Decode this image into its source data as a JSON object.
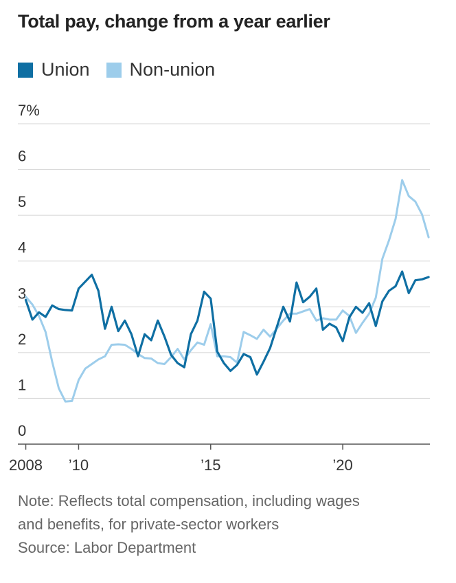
{
  "chart_data": {
    "type": "line",
    "title": "Total pay, change from a year earlier",
    "ylim": [
      0,
      7
    ],
    "y_ticks": [
      "0",
      "1",
      "2",
      "3",
      "4",
      "5",
      "6",
      "7%"
    ],
    "x_ticks": [
      {
        "label": "2008",
        "x": 2008.0
      },
      {
        "label": "’10",
        "x": 2010.0
      },
      {
        "label": "’15",
        "x": 2015.0
      },
      {
        "label": "’20",
        "x": 2020.0
      }
    ],
    "xlim": [
      2007.7,
      2023.3
    ],
    "grid": true,
    "legend_position": "top-left",
    "series": [
      {
        "name": "Union",
        "color": "#0f6fa3",
        "points": [
          [
            2008.0,
            3.15
          ],
          [
            2008.25,
            2.72
          ],
          [
            2008.5,
            2.88
          ],
          [
            2008.75,
            2.78
          ],
          [
            2009.0,
            3.03
          ],
          [
            2009.25,
            2.95
          ],
          [
            2009.5,
            2.93
          ],
          [
            2009.75,
            2.92
          ],
          [
            2010.0,
            3.4
          ],
          [
            2010.25,
            3.55
          ],
          [
            2010.5,
            3.7
          ],
          [
            2010.75,
            3.35
          ],
          [
            2011.0,
            2.52
          ],
          [
            2011.25,
            3.0
          ],
          [
            2011.5,
            2.47
          ],
          [
            2011.75,
            2.7
          ],
          [
            2012.0,
            2.4
          ],
          [
            2012.25,
            1.92
          ],
          [
            2012.5,
            2.4
          ],
          [
            2012.75,
            2.27
          ],
          [
            2013.0,
            2.7
          ],
          [
            2013.25,
            2.35
          ],
          [
            2013.5,
            1.95
          ],
          [
            2013.75,
            1.77
          ],
          [
            2014.0,
            1.68
          ],
          [
            2014.25,
            2.4
          ],
          [
            2014.5,
            2.7
          ],
          [
            2014.75,
            3.33
          ],
          [
            2015.0,
            3.18
          ],
          [
            2015.25,
            2.02
          ],
          [
            2015.5,
            1.77
          ],
          [
            2015.75,
            1.6
          ],
          [
            2016.0,
            1.73
          ],
          [
            2016.25,
            1.97
          ],
          [
            2016.5,
            1.9
          ],
          [
            2016.75,
            1.52
          ],
          [
            2017.0,
            1.8
          ],
          [
            2017.25,
            2.1
          ],
          [
            2017.5,
            2.55
          ],
          [
            2017.75,
            3.0
          ],
          [
            2018.0,
            2.68
          ],
          [
            2018.25,
            3.53
          ],
          [
            2018.5,
            3.1
          ],
          [
            2018.75,
            3.22
          ],
          [
            2019.0,
            3.4
          ],
          [
            2019.25,
            2.5
          ],
          [
            2019.5,
            2.63
          ],
          [
            2019.75,
            2.55
          ],
          [
            2020.0,
            2.25
          ],
          [
            2020.25,
            2.77
          ],
          [
            2020.5,
            3.0
          ],
          [
            2020.75,
            2.87
          ],
          [
            2021.0,
            3.08
          ],
          [
            2021.25,
            2.58
          ],
          [
            2021.5,
            3.12
          ],
          [
            2021.75,
            3.35
          ],
          [
            2022.0,
            3.45
          ],
          [
            2022.25,
            3.77
          ],
          [
            2022.5,
            3.3
          ],
          [
            2022.75,
            3.58
          ],
          [
            2023.0,
            3.6
          ],
          [
            2023.25,
            3.65
          ]
        ]
      },
      {
        "name": "Non-union",
        "color": "#9dcdeb",
        "points": [
          [
            2008.0,
            3.22
          ],
          [
            2008.25,
            3.05
          ],
          [
            2008.5,
            2.8
          ],
          [
            2008.75,
            2.45
          ],
          [
            2009.0,
            1.8
          ],
          [
            2009.25,
            1.22
          ],
          [
            2009.5,
            0.93
          ],
          [
            2009.75,
            0.94
          ],
          [
            2010.0,
            1.4
          ],
          [
            2010.25,
            1.65
          ],
          [
            2010.5,
            1.75
          ],
          [
            2010.75,
            1.85
          ],
          [
            2011.0,
            1.92
          ],
          [
            2011.25,
            2.17
          ],
          [
            2011.5,
            2.18
          ],
          [
            2011.75,
            2.17
          ],
          [
            2012.0,
            2.08
          ],
          [
            2012.25,
            1.97
          ],
          [
            2012.5,
            1.88
          ],
          [
            2012.75,
            1.87
          ],
          [
            2013.0,
            1.77
          ],
          [
            2013.25,
            1.75
          ],
          [
            2013.5,
            1.9
          ],
          [
            2013.75,
            2.08
          ],
          [
            2014.0,
            1.85
          ],
          [
            2014.25,
            2.05
          ],
          [
            2014.5,
            2.22
          ],
          [
            2014.75,
            2.17
          ],
          [
            2015.0,
            2.62
          ],
          [
            2015.25,
            1.92
          ],
          [
            2015.5,
            1.92
          ],
          [
            2015.75,
            1.9
          ],
          [
            2016.0,
            1.78
          ],
          [
            2016.25,
            2.45
          ],
          [
            2016.5,
            2.38
          ],
          [
            2016.75,
            2.3
          ],
          [
            2017.0,
            2.5
          ],
          [
            2017.25,
            2.35
          ],
          [
            2017.5,
            2.52
          ],
          [
            2017.75,
            2.7
          ],
          [
            2018.0,
            2.85
          ],
          [
            2018.25,
            2.85
          ],
          [
            2018.5,
            2.9
          ],
          [
            2018.75,
            2.95
          ],
          [
            2019.0,
            2.7
          ],
          [
            2019.25,
            2.75
          ],
          [
            2019.5,
            2.72
          ],
          [
            2019.75,
            2.72
          ],
          [
            2020.0,
            2.92
          ],
          [
            2020.25,
            2.8
          ],
          [
            2020.5,
            2.43
          ],
          [
            2020.75,
            2.65
          ],
          [
            2021.0,
            2.85
          ],
          [
            2021.25,
            3.2
          ],
          [
            2021.5,
            4.05
          ],
          [
            2021.75,
            4.45
          ],
          [
            2022.0,
            4.92
          ],
          [
            2022.25,
            5.77
          ],
          [
            2022.5,
            5.42
          ],
          [
            2022.75,
            5.3
          ],
          [
            2023.0,
            5.02
          ],
          [
            2023.25,
            4.52
          ]
        ]
      }
    ],
    "notes": [
      "Note: Reflects total compensation, including wages",
      "and benefits, for private-sector workers",
      "Source: Labor Department"
    ]
  }
}
